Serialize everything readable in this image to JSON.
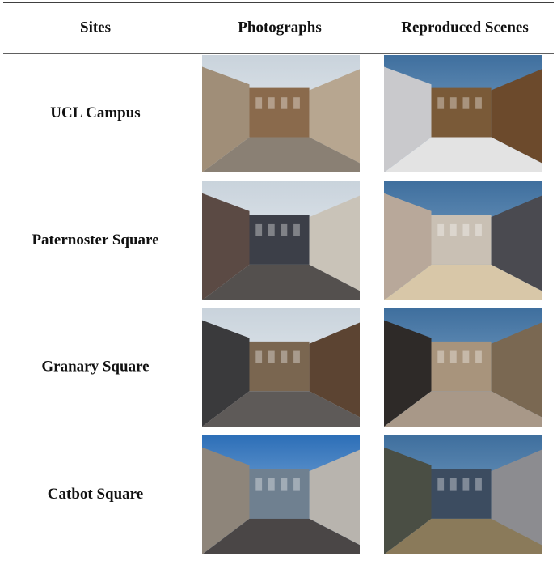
{
  "table": {
    "header": [
      "Sites",
      "Photographs",
      "Reproduced Scenes"
    ],
    "rows": [
      [
        "UCL Campus"
      ],
      [
        "Paternoster Square"
      ],
      [
        "Granary Square"
      ],
      [
        "Catbot Square"
      ]
    ]
  }
}
